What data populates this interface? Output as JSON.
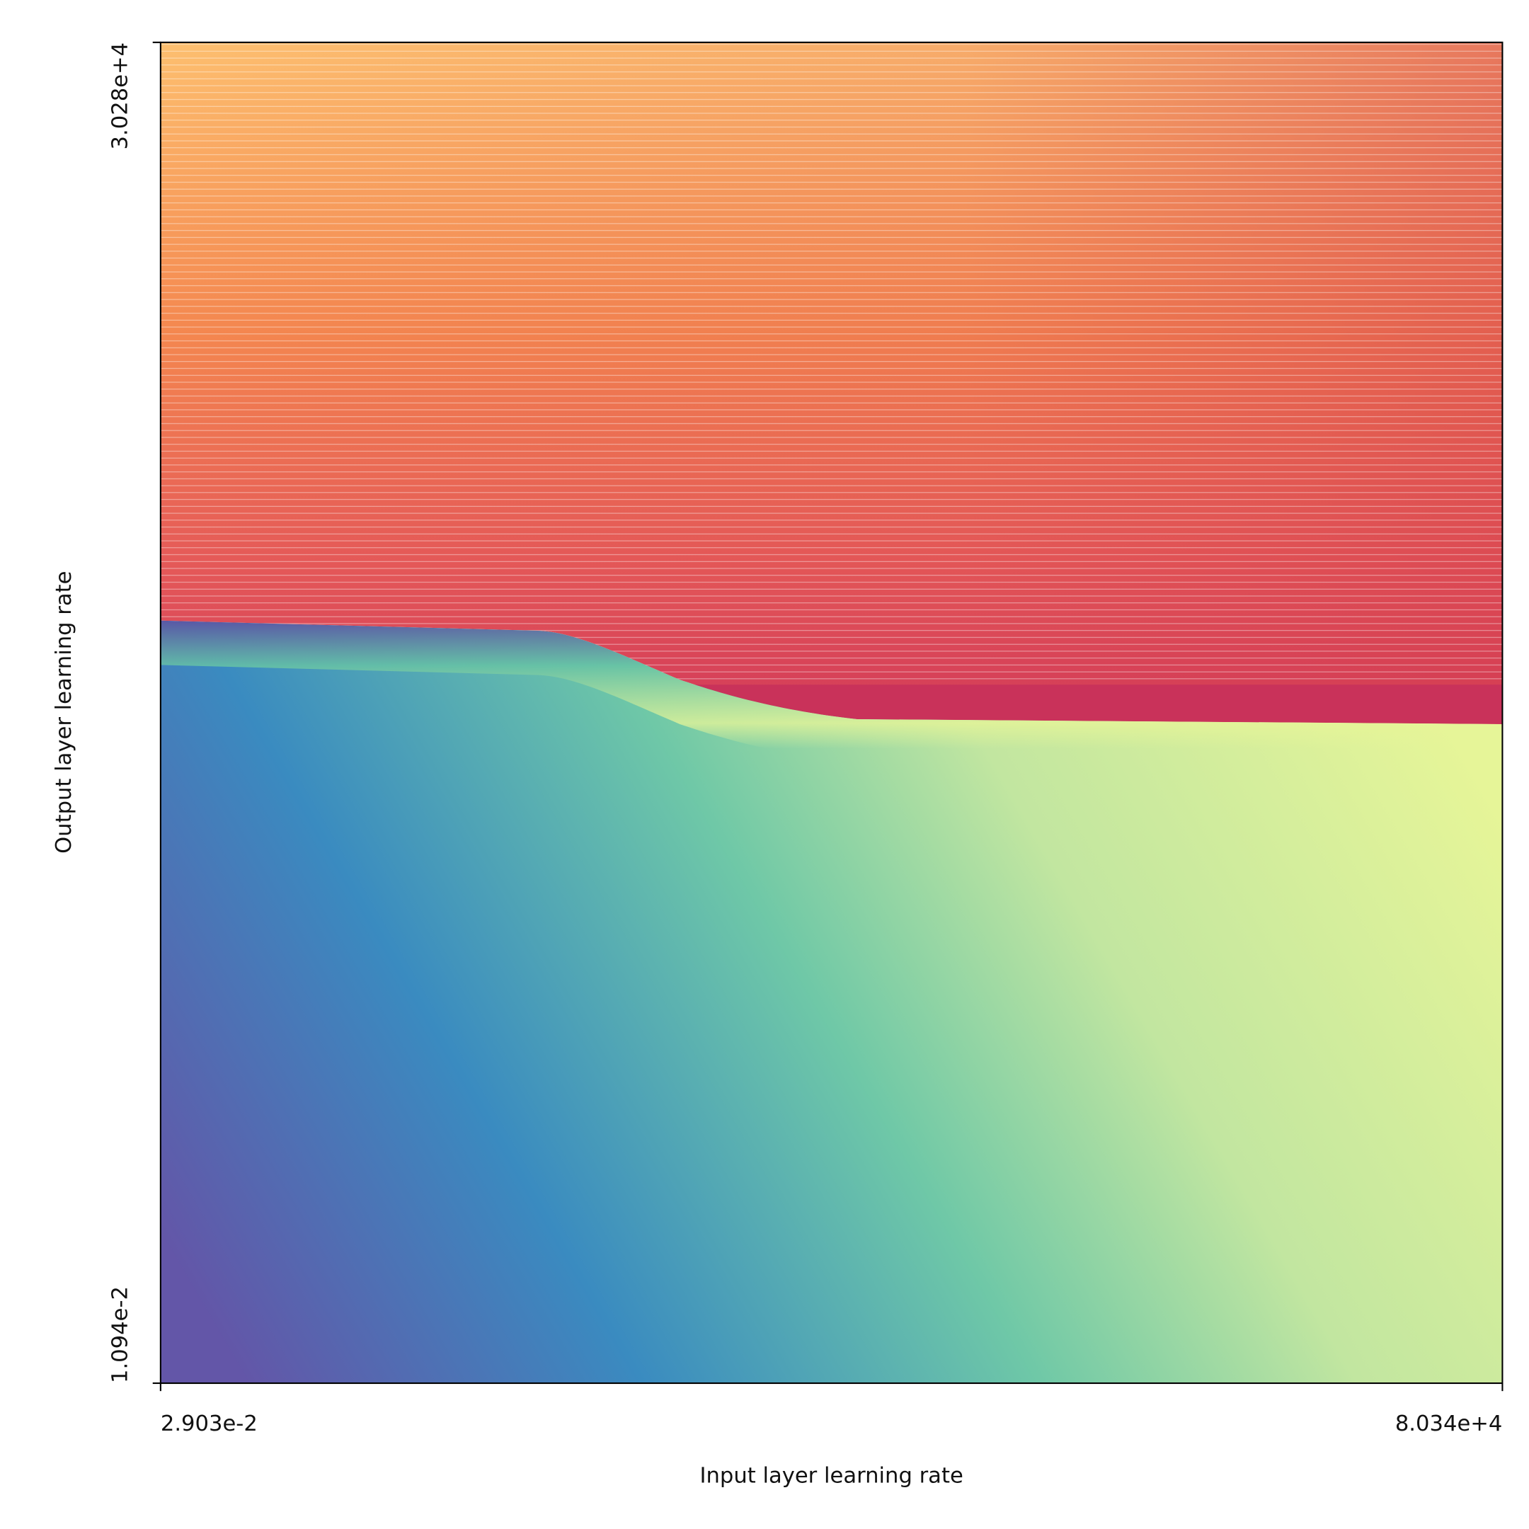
{
  "chart_data": {
    "type": "heatmap",
    "x_label": "Input layer learning rate",
    "y_label": "Output layer learning rate",
    "xscale": "log",
    "yscale": "log",
    "xlim": [
      0.02903,
      80340
    ],
    "ylim": [
      0.01094,
      30280
    ],
    "xticks": [
      {
        "value": 0.02903,
        "label": "2.903e-2"
      },
      {
        "value": 80340,
        "label": "8.034e+4"
      }
    ],
    "yticks": [
      {
        "value": 0.01094,
        "label": "1.094e-2"
      },
      {
        "value": 30280,
        "label": "3.028e+4"
      }
    ]
  }
}
